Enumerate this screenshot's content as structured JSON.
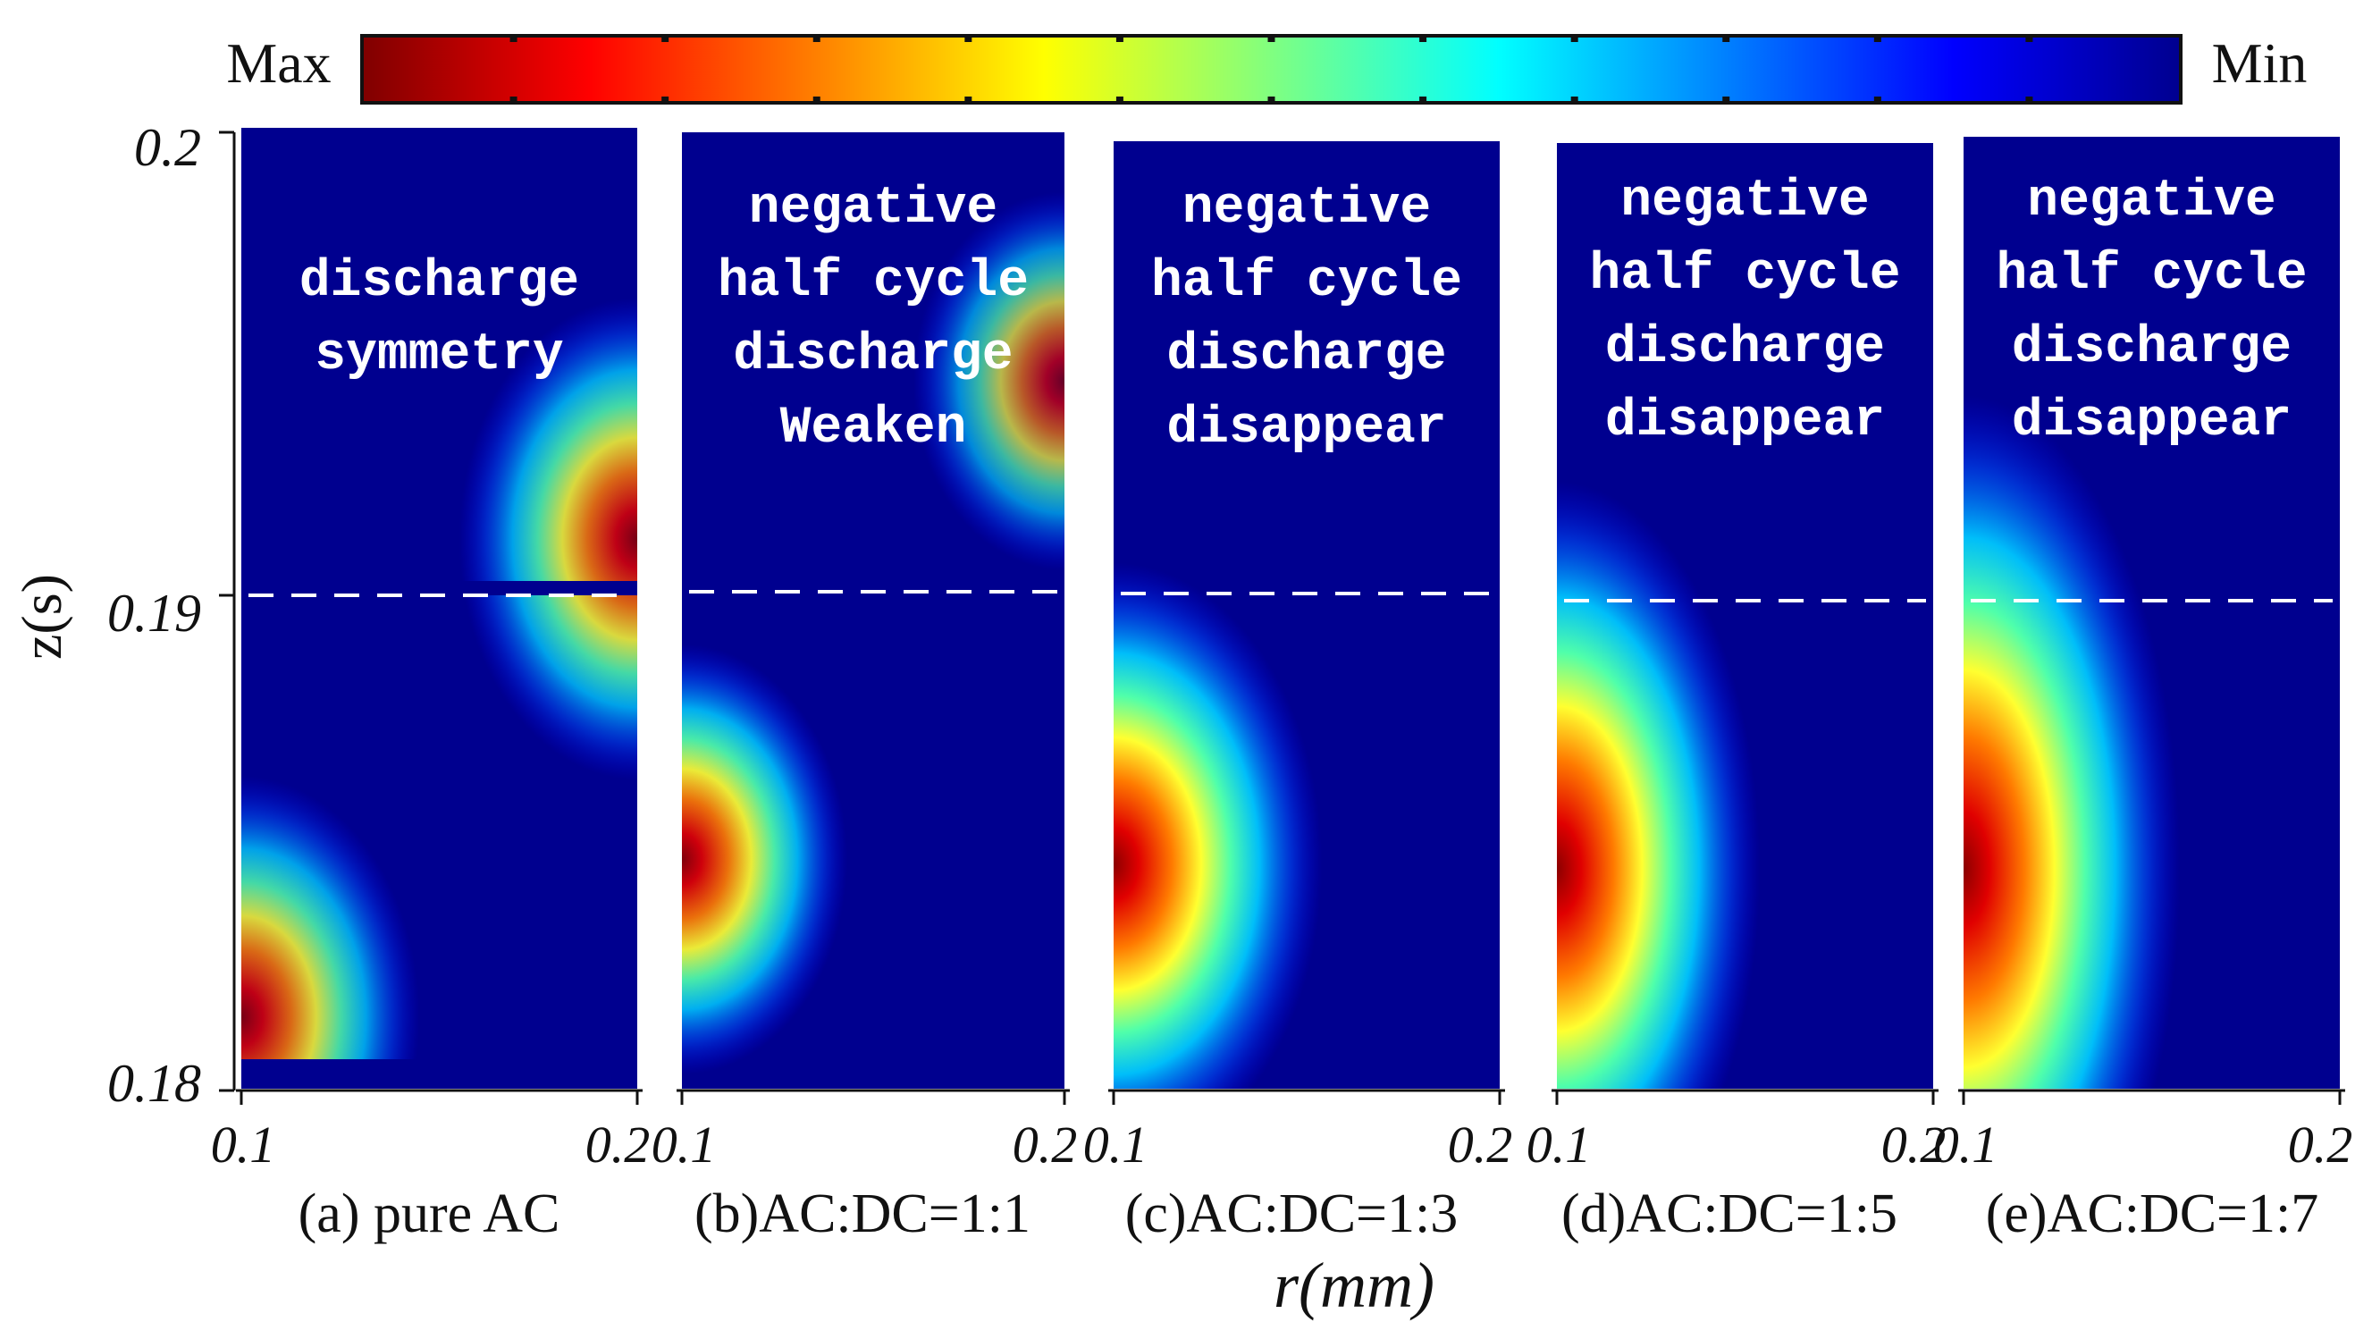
{
  "colorbar": {
    "max_label": "Max",
    "min_label": "Min",
    "stops": [
      "#7f0000",
      "#ff0000",
      "#ff8000",
      "#ffff00",
      "#80ff80",
      "#00ffff",
      "#0080ff",
      "#0000ff",
      "#00008f"
    ]
  },
  "chart_data": {
    "type": "heatmap",
    "ylabel": "z(s)",
    "xlabel": "r(mm)",
    "yticks": [
      "0.2",
      "0.19",
      "0.18"
    ],
    "ylim": [
      0.18,
      0.2
    ],
    "xlim": [
      0.1,
      0.2
    ],
    "xtick_left": "0.1",
    "xtick_right": "0.2",
    "reference_line_z": 0.19,
    "background_color": "#00008f",
    "panels": [
      {
        "caption": "(a) pure AC",
        "annotation": [
          "discharge",
          "symmetry"
        ],
        "hotspots": [
          {
            "r": 0.1,
            "z": 0.1815,
            "intensity": 0.85,
            "spread_r": 0.025,
            "spread_z": 0.0028
          },
          {
            "r": 0.2,
            "z": 0.1915,
            "intensity": 0.85,
            "spread_r": 0.025,
            "spread_z": 0.0028
          }
        ]
      },
      {
        "caption": "(b)AC:DC=1:1",
        "annotation": [
          "negative",
          "half cycle",
          "discharge",
          "Weaken"
        ],
        "hotspots": [
          {
            "r": 0.1,
            "z": 0.1848,
            "intensity": 0.92,
            "spread_r": 0.024,
            "spread_z": 0.0025
          },
          {
            "r": 0.2,
            "z": 0.1948,
            "intensity": 0.72,
            "spread_r": 0.022,
            "spread_z": 0.0022
          }
        ]
      },
      {
        "caption": "(c)AC:DC=1:3",
        "annotation": [
          "negative",
          "half cycle",
          "discharge",
          "disappear"
        ],
        "hotspots": [
          {
            "r": 0.1,
            "z": 0.1847,
            "intensity": 1.0,
            "spread_r": 0.03,
            "spread_z": 0.0035
          }
        ]
      },
      {
        "caption": "(d)AC:DC=1:5",
        "annotation": [
          "negative",
          "half cycle",
          "discharge",
          "disappear"
        ],
        "hotspots": [
          {
            "r": 0.1,
            "z": 0.1846,
            "intensity": 1.0,
            "spread_r": 0.03,
            "spread_z": 0.0045
          }
        ]
      },
      {
        "caption": "(e)AC:DC=1:7",
        "annotation": [
          "negative",
          "half cycle",
          "discharge",
          "disappear"
        ],
        "hotspots": [
          {
            "r": 0.1,
            "z": 0.1846,
            "intensity": 1.0,
            "spread_r": 0.032,
            "spread_z": 0.0055
          }
        ]
      }
    ]
  }
}
